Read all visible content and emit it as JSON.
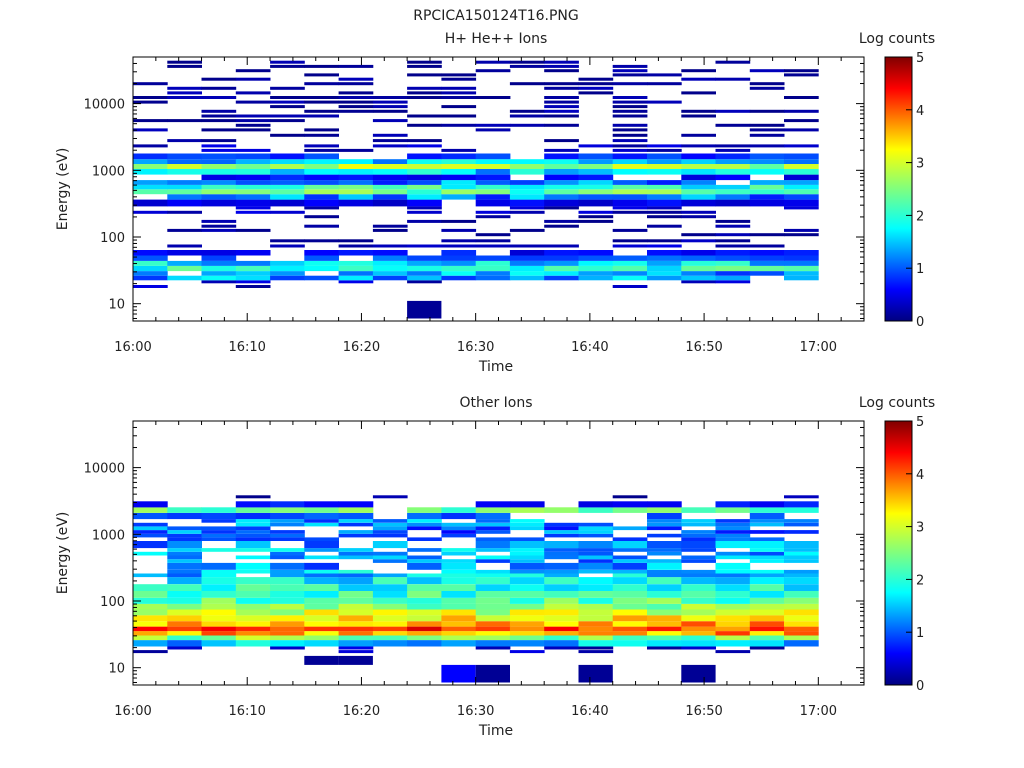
{
  "figure_title": "RPCICA150124T16.PNG",
  "chart_data": [
    {
      "type": "heatmap",
      "title": "H+ He++ Ions",
      "xlabel": "Time",
      "ylabel": "Energy (eV)",
      "x_ticks": [
        "16:00",
        "16:10",
        "16:20",
        "16:30",
        "16:40",
        "16:50",
        "17:00"
      ],
      "x_range_minutes": [
        0,
        64
      ],
      "y_scale": "log",
      "y_range": [
        5.5,
        50000
      ],
      "y_ticks": [
        {
          "value": 10,
          "label": "10"
        },
        {
          "value": 100,
          "label": "100"
        },
        {
          "value": 1000,
          "label": "1000"
        },
        {
          "value": 10000,
          "label": "10000"
        }
      ],
      "colorbar": {
        "label": "Log counts",
        "range": [
          0,
          5
        ],
        "ticks": [
          "0",
          "1",
          "2",
          "3",
          "4",
          "5"
        ]
      },
      "time_bins": 20,
      "energy_profile": [
        {
          "e": 18,
          "v": 0.3,
          "p": 0.3
        },
        {
          "e": 28,
          "v": 1.3,
          "p": 0.95
        },
        {
          "e": 34,
          "v": 2.0,
          "p": 1.0
        },
        {
          "e": 40,
          "v": 1.6,
          "p": 1.0
        },
        {
          "e": 48,
          "v": 1.0,
          "p": 0.9
        },
        {
          "e": 58,
          "v": 0.6,
          "p": 0.8
        },
        {
          "e": 70,
          "v": 0.3,
          "p": 0.6
        },
        {
          "e": 85,
          "v": 0.2,
          "p": 0.5
        },
        {
          "e": 100,
          "v": 0.1,
          "p": 0.35
        },
        {
          "e": 130,
          "v": 0.1,
          "p": 0.3
        },
        {
          "e": 180,
          "v": 0.1,
          "p": 0.3
        },
        {
          "e": 250,
          "v": 0.3,
          "p": 0.4
        },
        {
          "e": 330,
          "v": 0.5,
          "p": 0.6
        },
        {
          "e": 400,
          "v": 1.2,
          "p": 0.9
        },
        {
          "e": 480,
          "v": 2.3,
          "p": 1.0
        },
        {
          "e": 560,
          "v": 2.0,
          "p": 1.0
        },
        {
          "e": 650,
          "v": 1.2,
          "p": 0.9
        },
        {
          "e": 780,
          "v": 0.6,
          "p": 0.6
        },
        {
          "e": 950,
          "v": 1.6,
          "p": 1.0
        },
        {
          "e": 1150,
          "v": 2.8,
          "p": 1.0
        },
        {
          "e": 1350,
          "v": 1.5,
          "p": 1.0
        },
        {
          "e": 1600,
          "v": 0.8,
          "p": 0.8
        },
        {
          "e": 2000,
          "v": 0.3,
          "p": 0.55
        },
        {
          "e": 3000,
          "v": 0.1,
          "p": 0.4
        },
        {
          "e": 6000,
          "v": 0.1,
          "p": 0.35
        },
        {
          "e": 15000,
          "v": 0.1,
          "p": 0.35
        },
        {
          "e": 40000,
          "v": 0.1,
          "p": 0.35
        }
      ],
      "extra_cells": [
        {
          "bin": 8,
          "e_low": 6.0,
          "e_high": 11.0,
          "v": 0.1
        }
      ]
    },
    {
      "type": "heatmap",
      "title": "Other Ions",
      "xlabel": "Time",
      "ylabel": "Energy (eV)",
      "x_ticks": [
        "16:00",
        "16:10",
        "16:20",
        "16:30",
        "16:40",
        "16:50",
        "17:00"
      ],
      "x_range_minutes": [
        0,
        64
      ],
      "y_scale": "log",
      "y_range": [
        5.5,
        50000
      ],
      "y_ticks": [
        {
          "value": 10,
          "label": "10"
        },
        {
          "value": 100,
          "label": "100"
        },
        {
          "value": 1000,
          "label": "1000"
        },
        {
          "value": 10000,
          "label": "10000"
        }
      ],
      "colorbar": {
        "label": "Log counts",
        "range": [
          0,
          5
        ],
        "ticks": [
          "0",
          "1",
          "2",
          "3",
          "4",
          "5"
        ]
      },
      "time_bins": 20,
      "energy_profile": [
        {
          "e": 18,
          "v": 0.3,
          "p": 0.4
        },
        {
          "e": 24,
          "v": 1.5,
          "p": 1.0
        },
        {
          "e": 28,
          "v": 2.5,
          "p": 1.0
        },
        {
          "e": 33,
          "v": 3.7,
          "p": 1.0
        },
        {
          "e": 38,
          "v": 4.1,
          "p": 1.0
        },
        {
          "e": 45,
          "v": 3.6,
          "p": 1.0
        },
        {
          "e": 55,
          "v": 3.2,
          "p": 1.0
        },
        {
          "e": 68,
          "v": 2.9,
          "p": 1.0
        },
        {
          "e": 82,
          "v": 2.6,
          "p": 1.0
        },
        {
          "e": 100,
          "v": 2.3,
          "p": 1.0
        },
        {
          "e": 125,
          "v": 2.1,
          "p": 1.0
        },
        {
          "e": 160,
          "v": 1.9,
          "p": 1.0
        },
        {
          "e": 200,
          "v": 1.7,
          "p": 0.95
        },
        {
          "e": 260,
          "v": 1.5,
          "p": 0.85
        },
        {
          "e": 330,
          "v": 1.3,
          "p": 0.8
        },
        {
          "e": 420,
          "v": 1.3,
          "p": 0.75
        },
        {
          "e": 550,
          "v": 1.4,
          "p": 0.75
        },
        {
          "e": 700,
          "v": 1.2,
          "p": 0.7
        },
        {
          "e": 900,
          "v": 1.0,
          "p": 0.65
        },
        {
          "e": 1150,
          "v": 1.1,
          "p": 0.7
        },
        {
          "e": 1500,
          "v": 1.3,
          "p": 0.75
        },
        {
          "e": 1900,
          "v": 1.0,
          "p": 0.65
        },
        {
          "e": 2300,
          "v": 2.3,
          "p": 0.9
        },
        {
          "e": 2800,
          "v": 0.6,
          "p": 0.5
        },
        {
          "e": 3500,
          "v": 0.1,
          "p": 0.25
        }
      ],
      "extra_cells": [
        {
          "bin": 9,
          "e_low": 6.0,
          "e_high": 11.0,
          "v": 0.6
        },
        {
          "bin": 10,
          "e_low": 6.0,
          "e_high": 11.0,
          "v": 0.1
        },
        {
          "bin": 13,
          "e_low": 6.0,
          "e_high": 11.0,
          "v": 0.1
        },
        {
          "bin": 16,
          "e_low": 6.0,
          "e_high": 11.0,
          "v": 0.1
        },
        {
          "bin": 5,
          "e_low": 11.0,
          "e_high": 15.0,
          "v": 0.1
        },
        {
          "bin": 6,
          "e_low": 11.0,
          "e_high": 15.0,
          "v": 0.1
        }
      ]
    }
  ]
}
